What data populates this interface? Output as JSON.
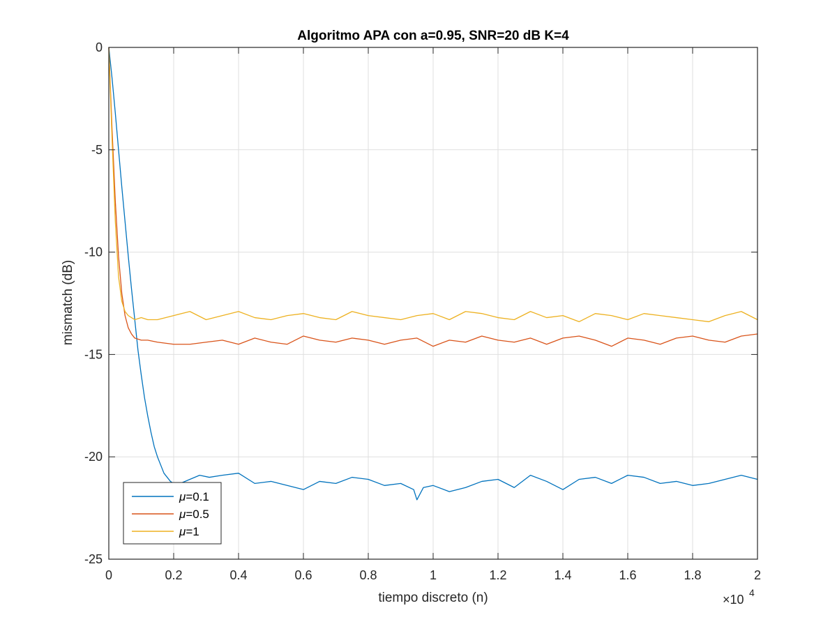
{
  "chart_data": {
    "type": "line",
    "title": "Algoritmo APA con a=0.95, SNR=20 dB K=4",
    "xlabel": "tiempo discreto (n)",
    "ylabel": "mismatch (dB)",
    "x_multiplier_label": "×10",
    "x_multiplier_exp": "4",
    "xlim": [
      0,
      2
    ],
    "ylim": [
      -25,
      0
    ],
    "xticks": [
      "0",
      "0.2",
      "0.4",
      "0.6",
      "0.8",
      "1",
      "1.2",
      "1.4",
      "1.6",
      "1.8",
      "2"
    ],
    "yticks": [
      "0",
      "-5",
      "-10",
      "-15",
      "-20",
      "-25"
    ],
    "grid": true,
    "legend_position": "bottom-left",
    "legend_prefix": "μ",
    "series": [
      {
        "name": "=0.1",
        "color": "#0072BD",
        "x": [
          0,
          0.01,
          0.02,
          0.03,
          0.04,
          0.05,
          0.06,
          0.07,
          0.08,
          0.09,
          0.1,
          0.11,
          0.12,
          0.13,
          0.14,
          0.15,
          0.16,
          0.17,
          0.18,
          0.19,
          0.2,
          0.22,
          0.25,
          0.28,
          0.31,
          0.35,
          0.4,
          0.45,
          0.5,
          0.55,
          0.6,
          0.65,
          0.7,
          0.75,
          0.8,
          0.85,
          0.9,
          0.94,
          0.95,
          0.97,
          1.0,
          1.05,
          1.1,
          1.15,
          1.2,
          1.25,
          1.3,
          1.35,
          1.4,
          1.45,
          1.5,
          1.55,
          1.6,
          1.65,
          1.7,
          1.75,
          1.8,
          1.85,
          1.9,
          1.95,
          2.0
        ],
        "y": [
          0,
          -1.5,
          -3.2,
          -5.0,
          -6.8,
          -8.5,
          -10.2,
          -11.8,
          -13.3,
          -14.8,
          -16.0,
          -17.1,
          -18.0,
          -18.8,
          -19.5,
          -20.0,
          -20.4,
          -20.8,
          -21.0,
          -21.2,
          -21.3,
          -21.3,
          -21.1,
          -20.9,
          -21.0,
          -20.9,
          -20.8,
          -21.3,
          -21.2,
          -21.4,
          -21.6,
          -21.2,
          -21.3,
          -21.0,
          -21.1,
          -21.4,
          -21.3,
          -21.6,
          -22.1,
          -21.5,
          -21.4,
          -21.7,
          -21.5,
          -21.2,
          -21.1,
          -21.5,
          -20.9,
          -21.2,
          -21.6,
          -21.1,
          -21.0,
          -21.3,
          -20.9,
          -21.0,
          -21.3,
          -21.2,
          -21.4,
          -21.3,
          -21.1,
          -20.9,
          -21.1
        ]
      },
      {
        "name": "=0.5",
        "color": "#D95319",
        "x": [
          0,
          0.01,
          0.02,
          0.03,
          0.04,
          0.05,
          0.06,
          0.07,
          0.08,
          0.1,
          0.12,
          0.15,
          0.2,
          0.25,
          0.3,
          0.35,
          0.4,
          0.45,
          0.5,
          0.55,
          0.6,
          0.65,
          0.7,
          0.75,
          0.8,
          0.85,
          0.9,
          0.95,
          1.0,
          1.05,
          1.1,
          1.15,
          1.2,
          1.25,
          1.3,
          1.35,
          1.4,
          1.45,
          1.5,
          1.55,
          1.6,
          1.65,
          1.7,
          1.75,
          1.8,
          1.85,
          1.9,
          1.95,
          2.0
        ],
        "y": [
          0,
          -4.0,
          -7.5,
          -10.2,
          -12.0,
          -13.1,
          -13.7,
          -14.0,
          -14.2,
          -14.3,
          -14.3,
          -14.4,
          -14.5,
          -14.5,
          -14.4,
          -14.3,
          -14.5,
          -14.2,
          -14.4,
          -14.5,
          -14.1,
          -14.3,
          -14.4,
          -14.2,
          -14.3,
          -14.5,
          -14.3,
          -14.2,
          -14.6,
          -14.3,
          -14.4,
          -14.1,
          -14.3,
          -14.4,
          -14.2,
          -14.5,
          -14.2,
          -14.1,
          -14.3,
          -14.6,
          -14.2,
          -14.3,
          -14.5,
          -14.2,
          -14.1,
          -14.3,
          -14.4,
          -14.1,
          -14.0
        ]
      },
      {
        "name": "=1",
        "color": "#EDB120",
        "x": [
          0,
          0.01,
          0.02,
          0.03,
          0.04,
          0.05,
          0.06,
          0.07,
          0.08,
          0.1,
          0.12,
          0.15,
          0.2,
          0.25,
          0.3,
          0.35,
          0.4,
          0.45,
          0.5,
          0.55,
          0.6,
          0.65,
          0.7,
          0.75,
          0.8,
          0.85,
          0.9,
          0.95,
          1.0,
          1.05,
          1.1,
          1.15,
          1.2,
          1.25,
          1.3,
          1.35,
          1.4,
          1.45,
          1.5,
          1.55,
          1.6,
          1.65,
          1.7,
          1.75,
          1.8,
          1.85,
          1.9,
          1.95,
          2.0
        ],
        "y": [
          0,
          -4.5,
          -8.5,
          -11.2,
          -12.4,
          -12.9,
          -13.1,
          -13.2,
          -13.3,
          -13.2,
          -13.3,
          -13.3,
          -13.1,
          -12.9,
          -13.3,
          -13.1,
          -12.9,
          -13.2,
          -13.3,
          -13.1,
          -13.0,
          -13.2,
          -13.3,
          -12.9,
          -13.1,
          -13.2,
          -13.3,
          -13.1,
          -13.0,
          -13.3,
          -12.9,
          -13.0,
          -13.2,
          -13.3,
          -12.9,
          -13.2,
          -13.1,
          -13.4,
          -13.0,
          -13.1,
          -13.3,
          -13.0,
          -13.1,
          -13.2,
          -13.3,
          -13.4,
          -13.1,
          -12.9,
          -13.3
        ]
      }
    ]
  }
}
